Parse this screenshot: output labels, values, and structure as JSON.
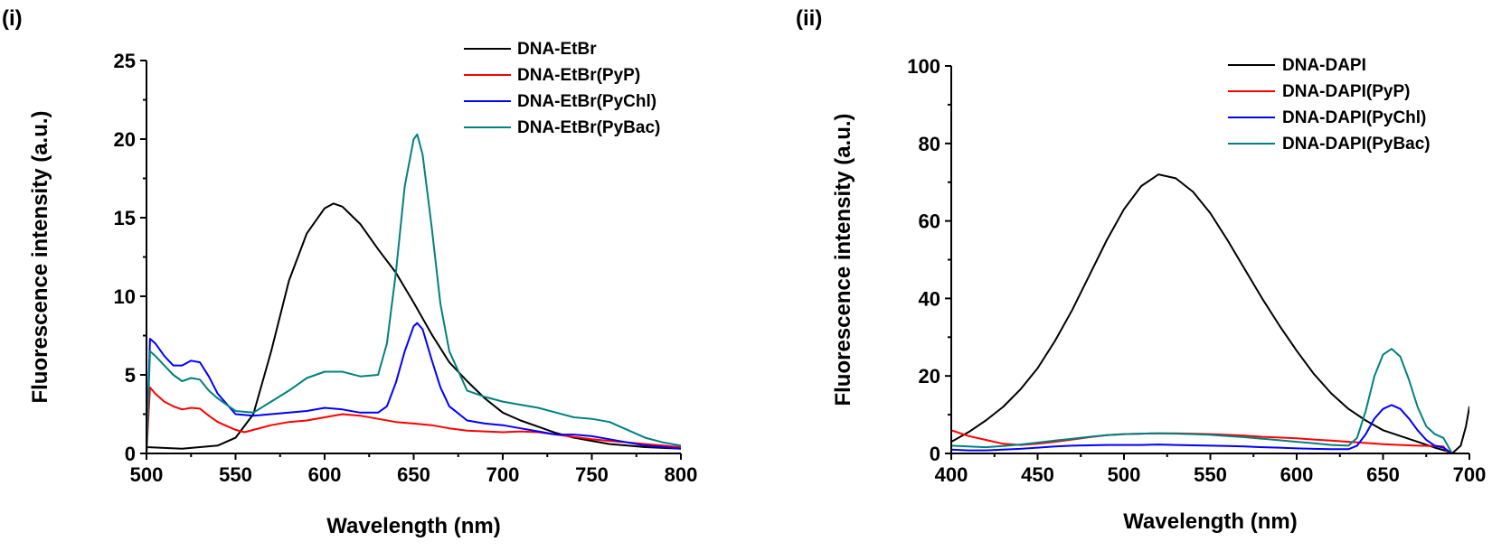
{
  "chart_data": [
    {
      "type": "line",
      "panel_label": "(i)",
      "xlabel": "Wavelength (nm)",
      "ylabel": "Fluorescence intensity (a.u.)",
      "xlim": [
        500,
        800
      ],
      "ylim": [
        0,
        25
      ],
      "xticks": [
        500,
        550,
        600,
        650,
        700,
        750,
        800
      ],
      "yticks": [
        0,
        5,
        10,
        15,
        20,
        25
      ],
      "grid": false,
      "legend": "top-right",
      "series": [
        {
          "name": "DNA-EtBr",
          "color": "#000000",
          "x": [
            500,
            510,
            520,
            530,
            540,
            550,
            560,
            570,
            580,
            590,
            600,
            605,
            610,
            620,
            630,
            640,
            650,
            660,
            670,
            680,
            690,
            700,
            710,
            720,
            730,
            740,
            750,
            760,
            770,
            780,
            790,
            800
          ],
          "y": [
            0.4,
            0.35,
            0.3,
            0.4,
            0.5,
            1.0,
            2.5,
            6.5,
            11.0,
            14.0,
            15.6,
            15.9,
            15.7,
            14.6,
            13.0,
            11.5,
            9.6,
            7.6,
            5.8,
            4.6,
            3.5,
            2.6,
            2.1,
            1.7,
            1.3,
            1.0,
            0.8,
            0.6,
            0.5,
            0.4,
            0.35,
            0.3
          ]
        },
        {
          "name": "DNA-EtBr(PyP)",
          "color": "#ff0000",
          "x": [
            500,
            502,
            505,
            510,
            515,
            520,
            525,
            530,
            535,
            540,
            550,
            555,
            560,
            570,
            580,
            590,
            600,
            610,
            620,
            630,
            640,
            650,
            660,
            670,
            680,
            690,
            700,
            710,
            720,
            730,
            740,
            750,
            760,
            770,
            780,
            790,
            800
          ],
          "y": [
            0.0,
            4.2,
            3.8,
            3.3,
            3.0,
            2.8,
            2.9,
            2.85,
            2.4,
            2.0,
            1.5,
            1.35,
            1.5,
            1.8,
            2.0,
            2.1,
            2.3,
            2.5,
            2.4,
            2.2,
            2.0,
            1.9,
            1.8,
            1.6,
            1.45,
            1.4,
            1.35,
            1.4,
            1.35,
            1.2,
            1.05,
            0.9,
            0.8,
            0.7,
            0.6,
            0.5,
            0.4
          ]
        },
        {
          "name": "DNA-EtBr(PyChl)",
          "color": "#0000ff",
          "x": [
            500,
            502,
            505,
            510,
            515,
            520,
            525,
            530,
            535,
            540,
            550,
            560,
            570,
            580,
            590,
            600,
            610,
            620,
            630,
            635,
            640,
            645,
            650,
            652,
            655,
            660,
            665,
            670,
            680,
            690,
            700,
            710,
            720,
            730,
            740,
            750,
            760,
            770,
            780,
            790,
            800
          ],
          "y": [
            0.0,
            7.3,
            7.0,
            6.2,
            5.6,
            5.6,
            5.9,
            5.8,
            4.9,
            3.8,
            2.5,
            2.4,
            2.5,
            2.6,
            2.7,
            2.9,
            2.8,
            2.6,
            2.6,
            3.0,
            4.5,
            6.5,
            8.1,
            8.3,
            7.9,
            6.0,
            4.2,
            3.0,
            2.1,
            1.9,
            1.8,
            1.6,
            1.4,
            1.2,
            1.2,
            1.1,
            0.9,
            0.7,
            0.5,
            0.4,
            0.3
          ]
        },
        {
          "name": "DNA-EtBr(PyBac)",
          "color": "#008080",
          "x": [
            500,
            502,
            505,
            510,
            515,
            520,
            525,
            530,
            535,
            540,
            550,
            560,
            570,
            580,
            590,
            600,
            610,
            620,
            630,
            635,
            640,
            645,
            650,
            652,
            655,
            660,
            665,
            670,
            680,
            690,
            700,
            710,
            720,
            730,
            740,
            750,
            760,
            770,
            780,
            790,
            800
          ],
          "y": [
            0.0,
            6.5,
            6.2,
            5.6,
            5.0,
            4.6,
            4.8,
            4.7,
            4.0,
            3.5,
            2.7,
            2.6,
            3.3,
            4.0,
            4.8,
            5.2,
            5.2,
            4.9,
            5.0,
            7.0,
            11.5,
            17.0,
            20.0,
            20.3,
            19.0,
            14.5,
            9.5,
            6.5,
            4.0,
            3.6,
            3.3,
            3.1,
            2.9,
            2.6,
            2.3,
            2.2,
            2.0,
            1.5,
            1.0,
            0.7,
            0.5
          ]
        }
      ]
    },
    {
      "type": "line",
      "panel_label": "(ii)",
      "xlabel": "Wavelength (nm)",
      "ylabel": "Fluorescence intensity (a.u.)",
      "xlim": [
        400,
        700
      ],
      "ylim": [
        0,
        100
      ],
      "xticks": [
        400,
        450,
        500,
        550,
        600,
        650,
        700
      ],
      "yticks": [
        0,
        20,
        40,
        60,
        80,
        100
      ],
      "grid": false,
      "legend": "top-right",
      "series": [
        {
          "name": "DNA-DAPI",
          "color": "#000000",
          "x": [
            400,
            410,
            420,
            430,
            440,
            450,
            460,
            470,
            480,
            490,
            500,
            510,
            520,
            530,
            540,
            550,
            560,
            570,
            580,
            590,
            600,
            610,
            620,
            630,
            640,
            650,
            660,
            670,
            680,
            688,
            690,
            695,
            698,
            700
          ],
          "y": [
            3.0,
            5.5,
            8.5,
            12.0,
            16.5,
            22.0,
            29.0,
            37.0,
            46.0,
            55.0,
            63.0,
            69.0,
            72.0,
            71.0,
            67.5,
            62.0,
            55.0,
            47.5,
            40.0,
            33.0,
            26.5,
            20.5,
            15.5,
            11.5,
            8.5,
            6.0,
            4.5,
            3.0,
            1.5,
            0.5,
            0.0,
            2.0,
            7.0,
            12.0
          ]
        },
        {
          "name": "DNA-DAPI(PyP)",
          "color": "#ff0000",
          "x": [
            400,
            410,
            420,
            430,
            440,
            450,
            460,
            470,
            480,
            490,
            500,
            510,
            520,
            530,
            540,
            550,
            560,
            570,
            580,
            590,
            600,
            610,
            620,
            630,
            640,
            650,
            660,
            670,
            680,
            685,
            688
          ],
          "y": [
            6.0,
            4.5,
            3.5,
            2.5,
            2.2,
            2.5,
            3.0,
            3.6,
            4.2,
            4.7,
            5.0,
            5.1,
            5.2,
            5.2,
            5.1,
            5.0,
            4.8,
            4.6,
            4.3,
            4.1,
            3.9,
            3.6,
            3.3,
            3.0,
            2.7,
            2.4,
            2.2,
            2.0,
            1.9,
            1.8,
            0.0
          ]
        },
        {
          "name": "DNA-DAPI(PyChl)",
          "color": "#0000ff",
          "x": [
            400,
            410,
            420,
            430,
            440,
            450,
            460,
            470,
            480,
            490,
            500,
            510,
            520,
            530,
            540,
            550,
            560,
            570,
            580,
            590,
            600,
            610,
            620,
            630,
            635,
            640,
            645,
            650,
            655,
            660,
            665,
            670,
            675,
            680,
            685,
            690
          ],
          "y": [
            1.0,
            0.8,
            0.8,
            1.0,
            1.2,
            1.5,
            1.8,
            2.0,
            2.1,
            2.2,
            2.2,
            2.2,
            2.3,
            2.2,
            2.1,
            2.0,
            1.9,
            1.8,
            1.6,
            1.5,
            1.3,
            1.2,
            1.1,
            1.1,
            2.0,
            5.0,
            9.0,
            11.5,
            12.5,
            11.5,
            9.0,
            6.0,
            3.5,
            2.0,
            1.5,
            0.0
          ]
        },
        {
          "name": "DNA-DAPI(PyBac)",
          "color": "#008080",
          "x": [
            400,
            410,
            420,
            430,
            440,
            450,
            460,
            470,
            480,
            490,
            500,
            510,
            520,
            530,
            540,
            550,
            560,
            570,
            580,
            590,
            600,
            610,
            620,
            630,
            635,
            640,
            645,
            650,
            655,
            660,
            665,
            670,
            675,
            680,
            685,
            690
          ],
          "y": [
            2.0,
            1.8,
            1.6,
            1.9,
            2.3,
            2.8,
            3.3,
            3.8,
            4.3,
            4.7,
            5.0,
            5.1,
            5.2,
            5.1,
            5.0,
            4.8,
            4.5,
            4.2,
            3.8,
            3.4,
            3.0,
            2.6,
            2.2,
            2.0,
            4.0,
            11.0,
            20.0,
            25.5,
            27.0,
            25.0,
            19.0,
            12.0,
            7.0,
            5.0,
            4.0,
            0.0
          ]
        }
      ]
    }
  ]
}
